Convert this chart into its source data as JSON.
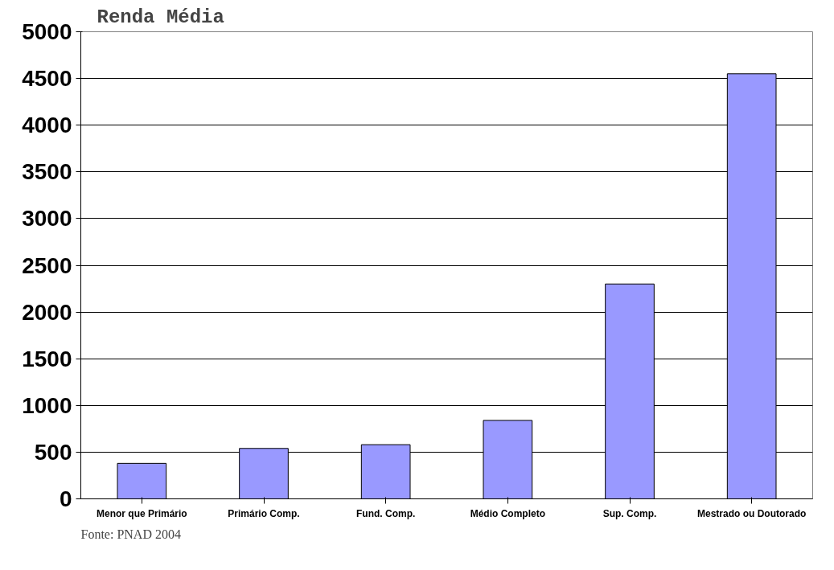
{
  "chart_data": {
    "type": "bar",
    "title": "Renda Média",
    "categories": [
      "Menor que Primário",
      "Primário Comp.",
      "Fund. Comp.",
      "Médio Completo",
      "Sup. Comp.",
      "Mestrado ou Doutorado"
    ],
    "values": [
      380,
      540,
      580,
      840,
      2300,
      4550
    ],
    "color": "#9999ff",
    "ylim": [
      0,
      5000
    ],
    "yticks": [
      0,
      500,
      1000,
      1500,
      2000,
      2500,
      3000,
      3500,
      4000,
      4500,
      5000
    ],
    "grid": "y",
    "annotations": [
      "Fonte: PNAD 2004"
    ]
  }
}
